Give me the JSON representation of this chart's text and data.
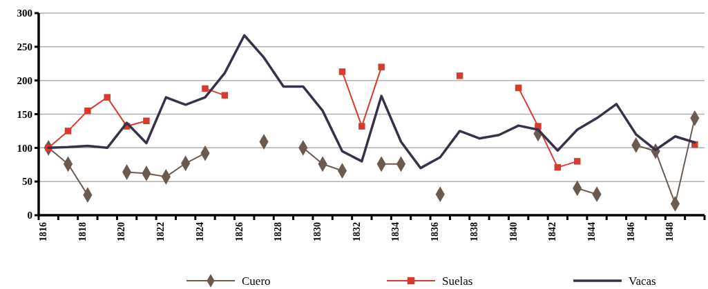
{
  "chart_data": {
    "type": "line",
    "categories": [
      "1816",
      null,
      "1818",
      null,
      "1820",
      null,
      "1822",
      null,
      "1824",
      null,
      "1826",
      null,
      "1828",
      null,
      "1830",
      null,
      "1832",
      null,
      "1834",
      null,
      "1836",
      null,
      "1838",
      null,
      "1840",
      null,
      "1842",
      null,
      "1844",
      null,
      "1846",
      null,
      "1848",
      null
    ],
    "ylim": [
      0,
      300
    ],
    "yticks": [
      0,
      50,
      100,
      150,
      200,
      250,
      300
    ],
    "grid": "y",
    "legend": "bottom",
    "series": [
      {
        "name": "Cuero",
        "color": "#6b5a50",
        "marker": "diamond",
        "values": [
          100,
          76,
          30,
          null,
          64,
          62,
          57,
          77,
          92,
          null,
          null,
          109,
          null,
          100,
          76,
          66,
          null,
          76,
          76,
          null,
          31,
          null,
          null,
          null,
          null,
          121,
          null,
          40,
          31,
          null,
          104,
          95,
          17,
          144
        ]
      },
      {
        "name": "Suelas",
        "color": "#d93a2e",
        "marker": "square",
        "values": [
          100,
          125,
          155,
          175,
          132,
          140,
          null,
          null,
          188,
          178,
          null,
          null,
          null,
          null,
          null,
          213,
          132,
          220,
          null,
          null,
          null,
          207,
          null,
          null,
          189,
          132,
          71,
          80,
          null,
          null,
          null,
          null,
          null,
          105
        ]
      },
      {
        "name": "Vacas",
        "color": "#3a3048",
        "marker": "none",
        "values": [
          100,
          101,
          103,
          100,
          137,
          107,
          175,
          164,
          175,
          211,
          267,
          234,
          191,
          191,
          155,
          95,
          80,
          177,
          109,
          70,
          86,
          125,
          114,
          119,
          133,
          127,
          96,
          127,
          144,
          165,
          120,
          97,
          117,
          108
        ]
      }
    ]
  }
}
